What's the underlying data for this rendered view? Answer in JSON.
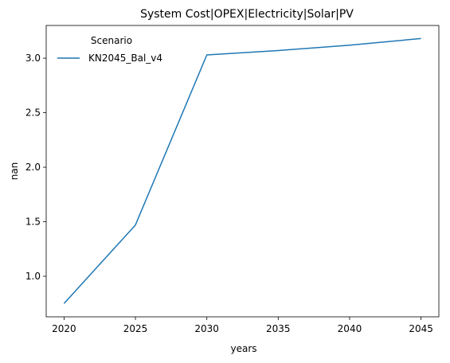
{
  "chart_data": {
    "type": "line",
    "title": "System Cost|OPEX|Electricity|Solar|PV",
    "xlabel": "years",
    "ylabel": "nan",
    "x": [
      2020,
      2025,
      2030,
      2035,
      2040,
      2045
    ],
    "series": [
      {
        "name": "KN2045_Bal_v4",
        "color": "#1f77b4",
        "values": [
          0.75,
          1.47,
          3.03,
          3.07,
          3.12,
          3.18
        ]
      }
    ],
    "xlim": [
      2018.75,
      2046.25
    ],
    "ylim": [
      0.628,
      3.3
    ],
    "xticks": [
      2020,
      2025,
      2030,
      2035,
      2040,
      2045
    ],
    "xtick_labels": [
      "2020",
      "2025",
      "2030",
      "2035",
      "2040",
      "2045"
    ],
    "yticks": [
      1.0,
      1.5,
      2.0,
      2.5,
      3.0
    ],
    "ytick_labels": [
      "1.0",
      "1.5",
      "2.0",
      "2.5",
      "3.0"
    ],
    "grid": false,
    "legend": {
      "title": "Scenario",
      "position": "upper-left"
    }
  }
}
